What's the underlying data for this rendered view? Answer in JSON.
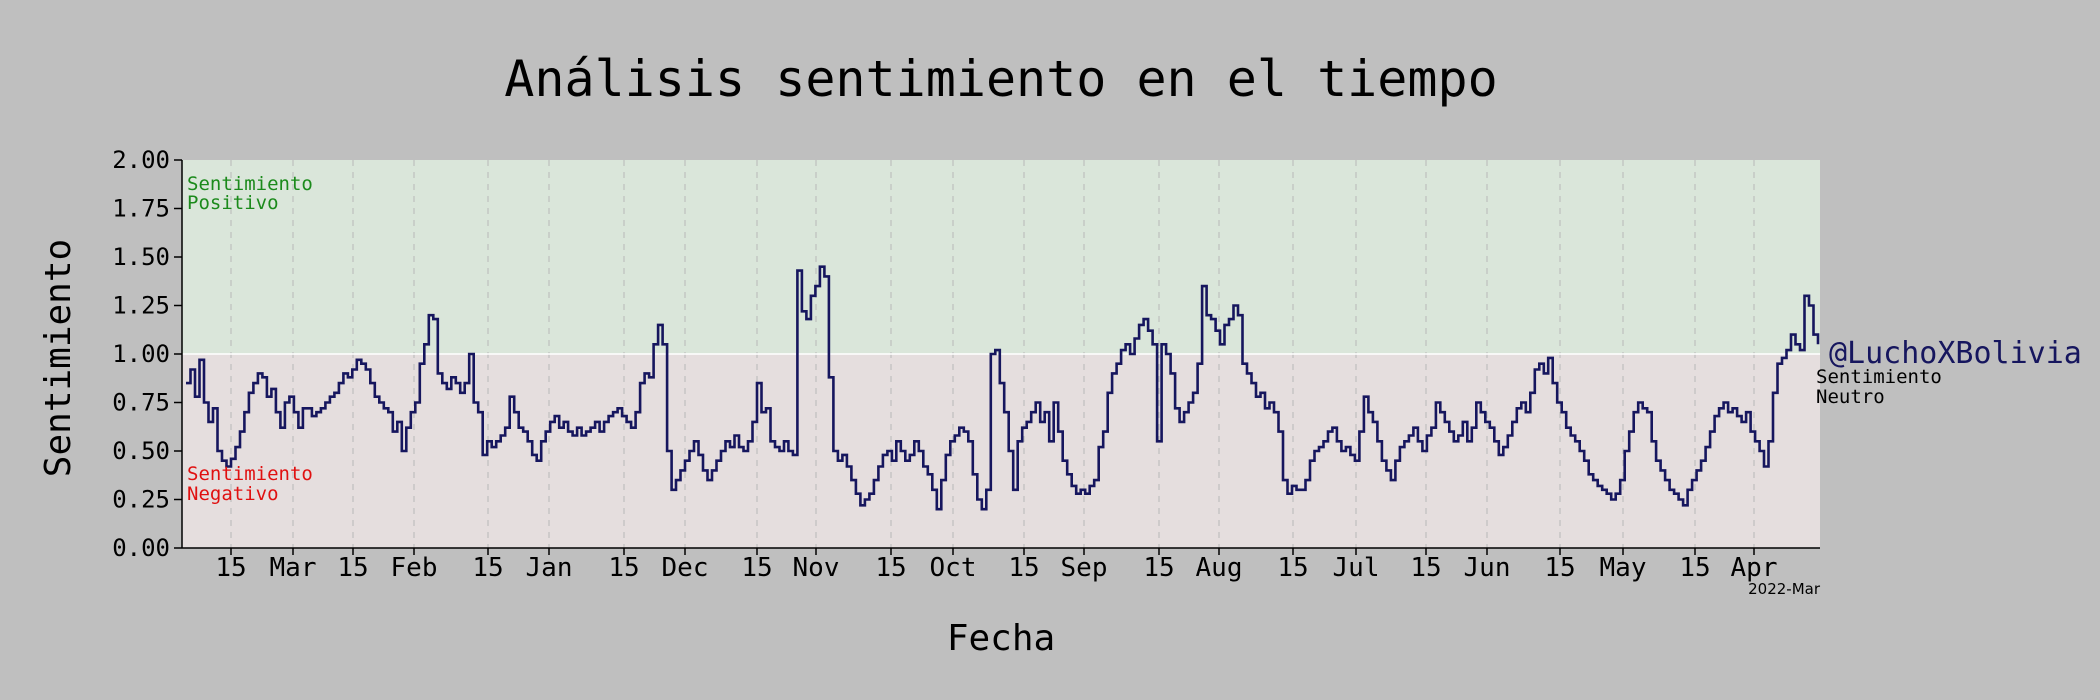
{
  "chart_data": {
    "type": "line",
    "title": "Análisis sentimiento en el tiempo",
    "xlabel": "Fecha",
    "ylabel": "Sentimiento",
    "ylim": [
      0,
      2
    ],
    "yticks": [
      "0.00",
      "0.25",
      "0.50",
      "0.75",
      "1.00",
      "1.25",
      "1.50",
      "1.75",
      "2.00"
    ],
    "xticks": [
      "15",
      "Mar",
      "15",
      "Feb",
      "15",
      "Jan",
      "15",
      "Dec",
      "15",
      "Nov",
      "15",
      "Oct",
      "15",
      "Sep",
      "15",
      "Aug",
      "15",
      "Jul",
      "15",
      "Jun",
      "15",
      "May",
      "15",
      "Apr"
    ],
    "x_offset_label": "2022-Mar",
    "x_axis_order": "descending dates (most recent at left)",
    "grid": "vertical dashed at ticks",
    "neutral_line": 1.0,
    "annotations": {
      "positive": [
        "Sentimiento",
        "Positivo"
      ],
      "negative": [
        "Sentimiento",
        "Negativo"
      ],
      "neutral": [
        "Sentimiento",
        "Neutro"
      ],
      "handle": "@LuchoXBolivia"
    },
    "series": [
      {
        "values": [
          0.85,
          0.92,
          0.78,
          0.97,
          0.75,
          0.65,
          0.72,
          0.5,
          0.45,
          0.42,
          0.46,
          0.52,
          0.6,
          0.7,
          0.8,
          0.85,
          0.9,
          0.88,
          0.78,
          0.82,
          0.7,
          0.62,
          0.75,
          0.78,
          0.7,
          0.62,
          0.72,
          0.72,
          0.68,
          0.7,
          0.72,
          0.75,
          0.78,
          0.8,
          0.85,
          0.9,
          0.88,
          0.92,
          0.97,
          0.95,
          0.92,
          0.85,
          0.78,
          0.75,
          0.72,
          0.7,
          0.6,
          0.65,
          0.5,
          0.62,
          0.7,
          0.75,
          0.95,
          1.05,
          1.2,
          1.18,
          0.9,
          0.85,
          0.82,
          0.88,
          0.85,
          0.8,
          0.85,
          1.0,
          0.75,
          0.7,
          0.48,
          0.55,
          0.52,
          0.55,
          0.58,
          0.62,
          0.78,
          0.7,
          0.62,
          0.6,
          0.55,
          0.48,
          0.45,
          0.55,
          0.6,
          0.65,
          0.68,
          0.62,
          0.65,
          0.6,
          0.58,
          0.62,
          0.58,
          0.6,
          0.62,
          0.65,
          0.6,
          0.65,
          0.68,
          0.7,
          0.72,
          0.68,
          0.65,
          0.62,
          0.7,
          0.85,
          0.9,
          0.88,
          1.05,
          1.15,
          1.05,
          0.5,
          0.3,
          0.35,
          0.4,
          0.45,
          0.5,
          0.55,
          0.48,
          0.4,
          0.35,
          0.4,
          0.45,
          0.5,
          0.55,
          0.52,
          0.58,
          0.52,
          0.5,
          0.55,
          0.65,
          0.85,
          0.7,
          0.72,
          0.55,
          0.52,
          0.5,
          0.55,
          0.5,
          0.48,
          1.43,
          1.22,
          1.18,
          1.3,
          1.35,
          1.45,
          1.4,
          0.88,
          0.5,
          0.45,
          0.48,
          0.42,
          0.35,
          0.28,
          0.22,
          0.25,
          0.28,
          0.35,
          0.42,
          0.48,
          0.5,
          0.45,
          0.55,
          0.5,
          0.45,
          0.48,
          0.55,
          0.5,
          0.42,
          0.38,
          0.3,
          0.2,
          0.35,
          0.48,
          0.55,
          0.58,
          0.62,
          0.6,
          0.55,
          0.38,
          0.25,
          0.2,
          0.3,
          1.0,
          1.02,
          0.85,
          0.7,
          0.5,
          0.3,
          0.55,
          0.62,
          0.65,
          0.7,
          0.75,
          0.65,
          0.7,
          0.55,
          0.75,
          0.6,
          0.45,
          0.38,
          0.32,
          0.28,
          0.3,
          0.28,
          0.32,
          0.35,
          0.52,
          0.6,
          0.8,
          0.9,
          0.95,
          1.02,
          1.05,
          1.0,
          1.08,
          1.15,
          1.18,
          1.12,
          1.05,
          0.55,
          1.05,
          1.0,
          0.9,
          0.72,
          0.65,
          0.7,
          0.75,
          0.8,
          0.95,
          1.35,
          1.2,
          1.18,
          1.12,
          1.05,
          1.15,
          1.18,
          1.25,
          1.2,
          0.95,
          0.9,
          0.85,
          0.78,
          0.8,
          0.72,
          0.75,
          0.7,
          0.6,
          0.35,
          0.28,
          0.32,
          0.3,
          0.3,
          0.35,
          0.45,
          0.5,
          0.52,
          0.55,
          0.6,
          0.62,
          0.55,
          0.5,
          0.52,
          0.48,
          0.45,
          0.6,
          0.78,
          0.7,
          0.65,
          0.55,
          0.45,
          0.4,
          0.35,
          0.45,
          0.52,
          0.55,
          0.58,
          0.62,
          0.55,
          0.5,
          0.58,
          0.62,
          0.75,
          0.7,
          0.65,
          0.6,
          0.55,
          0.58,
          0.65,
          0.55,
          0.62,
          0.75,
          0.7,
          0.65,
          0.62,
          0.55,
          0.48,
          0.52,
          0.58,
          0.65,
          0.72,
          0.75,
          0.7,
          0.8,
          0.92,
          0.95,
          0.9,
          0.98,
          0.85,
          0.75,
          0.7,
          0.62,
          0.58,
          0.55,
          0.5,
          0.45,
          0.38,
          0.35,
          0.32,
          0.3,
          0.28,
          0.25,
          0.28,
          0.35,
          0.5,
          0.6,
          0.7,
          0.75,
          0.72,
          0.7,
          0.55,
          0.45,
          0.4,
          0.35,
          0.3,
          0.28,
          0.25,
          0.22,
          0.3,
          0.35,
          0.4,
          0.45,
          0.52,
          0.6,
          0.68,
          0.72,
          0.75,
          0.7,
          0.72,
          0.68,
          0.65,
          0.7,
          0.6,
          0.55,
          0.5,
          0.42,
          0.55,
          0.8,
          0.95,
          0.98,
          1.02,
          1.1,
          1.05,
          1.02,
          1.3,
          1.25,
          1.1,
          1.05
        ]
      }
    ]
  },
  "colors": {
    "background": "#bfbfbf",
    "positive_zone": "#dae6da",
    "negative_zone": "#e5dede",
    "series_line": "#16165e",
    "positive_text": "#1b8a1b",
    "negative_text": "#e01010",
    "handle_text": "#16165e",
    "neutral_line": "#ffffff"
  }
}
